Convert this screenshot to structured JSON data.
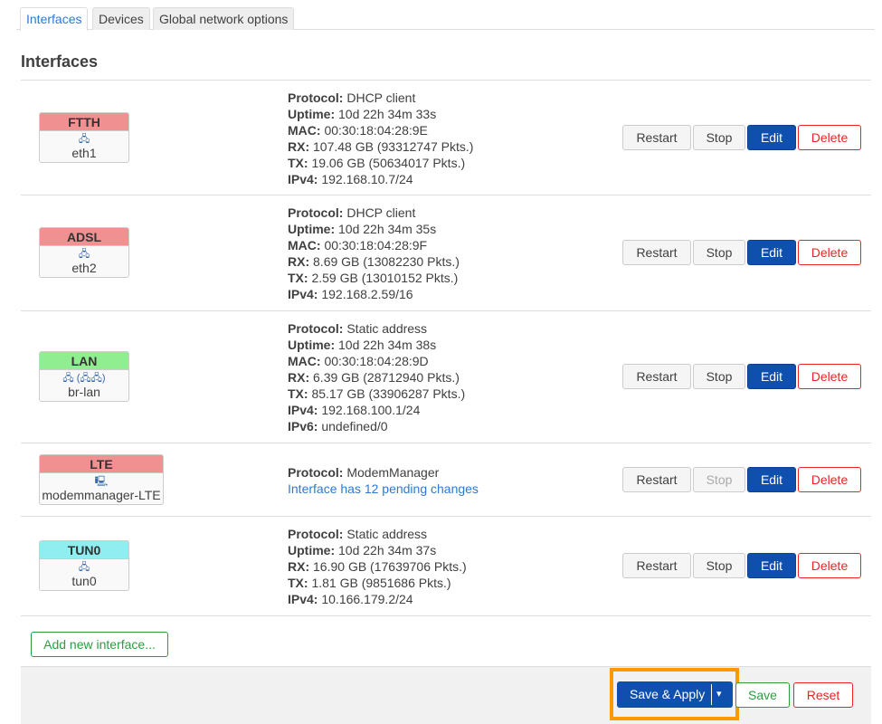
{
  "tabs": [
    {
      "label": "Interfaces",
      "active": true
    },
    {
      "label": "Devices"
    },
    {
      "label": "Global network options"
    }
  ],
  "section_title": "Interfaces",
  "interfaces": [
    {
      "name": "FTTH",
      "color": "#f09090",
      "icon": "ethernet-port-icon",
      "icon_glyph": "🖧",
      "device": "eth1",
      "details": [
        [
          "Protocol:",
          "DHCP client"
        ],
        [
          "Uptime:",
          "10d 22h 34m 33s"
        ],
        [
          "MAC:",
          "00:30:18:04:28:9E"
        ],
        [
          "RX:",
          "107.48 GB (93312747 Pkts.)"
        ],
        [
          "TX:",
          "19.06 GB (50634017 Pkts.)"
        ],
        [
          "IPv4:",
          "192.168.10.7/24"
        ]
      ],
      "stop_disabled": false
    },
    {
      "name": "ADSL",
      "color": "#f09090",
      "icon": "ethernet-port-icon",
      "icon_glyph": "🖧",
      "device": "eth2",
      "details": [
        [
          "Protocol:",
          "DHCP client"
        ],
        [
          "Uptime:",
          "10d 22h 34m 35s"
        ],
        [
          "MAC:",
          "00:30:18:04:28:9F"
        ],
        [
          "RX:",
          "8.69 GB (13082230 Pkts.)"
        ],
        [
          "TX:",
          "2.59 GB (13010152 Pkts.)"
        ],
        [
          "IPv4:",
          "192.168.2.59/16"
        ]
      ],
      "stop_disabled": false
    },
    {
      "name": "LAN",
      "color": "#90ee90",
      "icon": "bridge-icon",
      "icon_glyph": "🖧 (🖧🖧)",
      "device": "br-lan",
      "details": [
        [
          "Protocol:",
          "Static address"
        ],
        [
          "Uptime:",
          "10d 22h 34m 38s"
        ],
        [
          "MAC:",
          "00:30:18:04:28:9D"
        ],
        [
          "RX:",
          "6.39 GB (28712940 Pkts.)"
        ],
        [
          "TX:",
          "85.17 GB (33906287 Pkts.)"
        ],
        [
          "IPv4:",
          "192.168.100.1/24"
        ],
        [
          "IPv6:",
          "undefined/0"
        ]
      ],
      "stop_disabled": false
    },
    {
      "name": "LTE",
      "color": "#f09090",
      "icon": "modem-icon",
      "icon_glyph": "🖳",
      "device": "modemmanager-LTE",
      "details": [
        [
          "Protocol:",
          "ModemManager"
        ]
      ],
      "pending": "Interface has 12 pending changes",
      "stop_disabled": true
    },
    {
      "name": "TUN0",
      "color": "#90eef0",
      "icon": "ethernet-port-icon",
      "icon_glyph": "🖧",
      "device": "tun0",
      "details": [
        [
          "Protocol:",
          "Static address"
        ],
        [
          "Uptime:",
          "10d 22h 34m 37s"
        ],
        [
          "RX:",
          "16.90 GB (17639706 Pkts.)"
        ],
        [
          "TX:",
          "1.81 GB (9851686 Pkts.)"
        ],
        [
          "IPv4:",
          "10.166.179.2/24"
        ]
      ],
      "stop_disabled": false
    }
  ],
  "row_buttons": {
    "restart": "Restart",
    "stop": "Stop",
    "edit": "Edit",
    "delete": "Delete"
  },
  "add_interface": "Add new interface...",
  "footer": {
    "save_apply": "Save & Apply",
    "dropdown": "▾",
    "save": "Save",
    "reset": "Reset"
  }
}
